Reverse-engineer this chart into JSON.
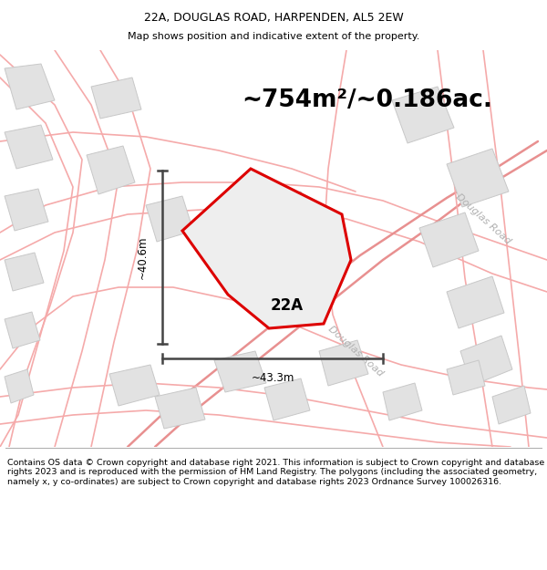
{
  "title": "22A, DOUGLAS ROAD, HARPENDEN, AL5 2EW",
  "subtitle": "Map shows position and indicative extent of the property.",
  "area_text": "~754m²/~0.186ac.",
  "label_22a": "22A",
  "dim_width": "~43.3m",
  "dim_height": "~40.6m",
  "footer": "Contains OS data © Crown copyright and database right 2021. This information is subject to Crown copyright and database rights 2023 and is reproduced with the permission of HM Land Registry. The polygons (including the associated geometry, namely x, y co-ordinates) are subject to Crown copyright and database rights 2023 Ordnance Survey 100026316.",
  "road_color": "#f5aaaa",
  "road_color2": "#e89090",
  "block_fill": "#e2e2e2",
  "block_edge": "#c8c8c8",
  "property_edge": "#dd0000",
  "property_fill": "#eeeeee",
  "dim_color": "#444444",
  "douglas_road_label": "Douglas Road",
  "douglas_road_label2": "Douglas Road",
  "map_bg": "#fafafa"
}
